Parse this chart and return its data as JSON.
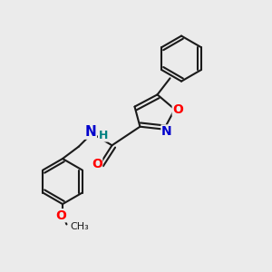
{
  "bg_color": "#ebebeb",
  "bond_color": "#1a1a1a",
  "line_width": 1.5,
  "dbo": 0.08,
  "atom_colors": {
    "O": "#ff0000",
    "N": "#0000cc",
    "H": "#008080",
    "C": "#1a1a1a"
  },
  "font_size": 10
}
